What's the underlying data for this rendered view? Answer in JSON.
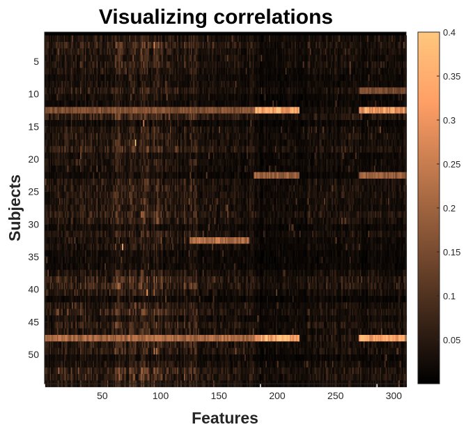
{
  "chart_data": {
    "type": "heatmap",
    "title": "Visualizing correlations",
    "xlabel": "Features",
    "ylabel": "Subjects",
    "x_range": [
      1,
      310
    ],
    "y_range": [
      1,
      54
    ],
    "y_direction": "top-to-bottom",
    "x_ticks": [
      50,
      100,
      150,
      200,
      250,
      300
    ],
    "x_tick_labels": [
      "50",
      "100",
      "150",
      "200",
      "250",
      "300"
    ],
    "y_ticks": [
      5,
      10,
      15,
      20,
      25,
      30,
      35,
      40,
      45,
      50
    ],
    "y_tick_labels": [
      "5",
      "10",
      "15",
      "20",
      "25",
      "30",
      "35",
      "40",
      "45",
      "50"
    ],
    "colormap": "copper",
    "color_range": [
      0,
      0.4
    ],
    "colorbar_ticks": [
      0.05,
      0.1,
      0.15,
      0.2,
      0.25,
      0.3,
      0.35,
      0.4
    ],
    "colorbar_tick_labels": [
      "0.05",
      "0.1",
      "0.15",
      "0.2",
      "0.25",
      "0.3",
      "0.35",
      "0.4"
    ],
    "grid": false,
    "colorbar_location": "right",
    "highlight_rows": [
      {
        "row": 12,
        "x_from": 180,
        "x_to": 218,
        "value": 0.36
      },
      {
        "row": 12,
        "x_from": 270,
        "x_to": 310,
        "value": 0.33
      },
      {
        "row": 47,
        "x_from": 180,
        "x_to": 218,
        "value": 0.36
      },
      {
        "row": 47,
        "x_from": 270,
        "x_to": 310,
        "value": 0.34
      },
      {
        "row": 47,
        "x_from": 1,
        "x_to": 180,
        "value": 0.22
      },
      {
        "row": 12,
        "x_from": 1,
        "x_to": 180,
        "value": 0.17
      },
      {
        "row": 22,
        "x_from": 180,
        "x_to": 218,
        "value": 0.2
      },
      {
        "row": 22,
        "x_from": 270,
        "x_to": 310,
        "value": 0.2
      },
      {
        "row": 32,
        "x_from": 125,
        "x_to": 175,
        "value": 0.23
      },
      {
        "row": 9,
        "x_from": 270,
        "x_to": 310,
        "value": 0.16
      }
    ],
    "hot_spots": [
      {
        "row": 17,
        "col": 78,
        "value": 0.4
      },
      {
        "row": 33,
        "col": 67,
        "value": 0.37
      },
      {
        "row": 40,
        "col": 88,
        "value": 0.33
      },
      {
        "row": 14,
        "col": 85,
        "value": 0.27
      }
    ]
  }
}
